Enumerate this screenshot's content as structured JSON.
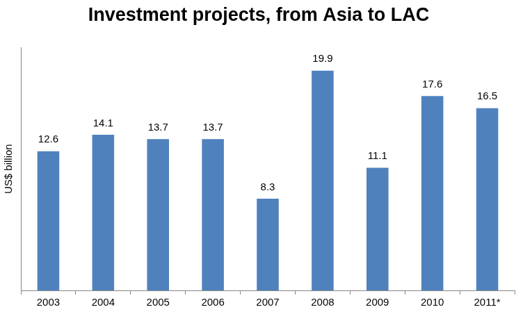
{
  "chart_data": {
    "type": "bar",
    "title": "Investment projects, from Asia to LAC",
    "y_label": "US$ billion",
    "categories": [
      "2003",
      "2004",
      "2005",
      "2006",
      "2007",
      "2008",
      "2009",
      "2010",
      "2011*"
    ],
    "values": [
      12.6,
      14.1,
      13.7,
      13.7,
      8.3,
      19.9,
      11.1,
      17.6,
      16.5
    ],
    "color": "#4f81bd",
    "ylim": [
      0,
      22
    ],
    "yticks": [],
    "grid": false,
    "data_labels": true,
    "tick_labels": "x"
  }
}
